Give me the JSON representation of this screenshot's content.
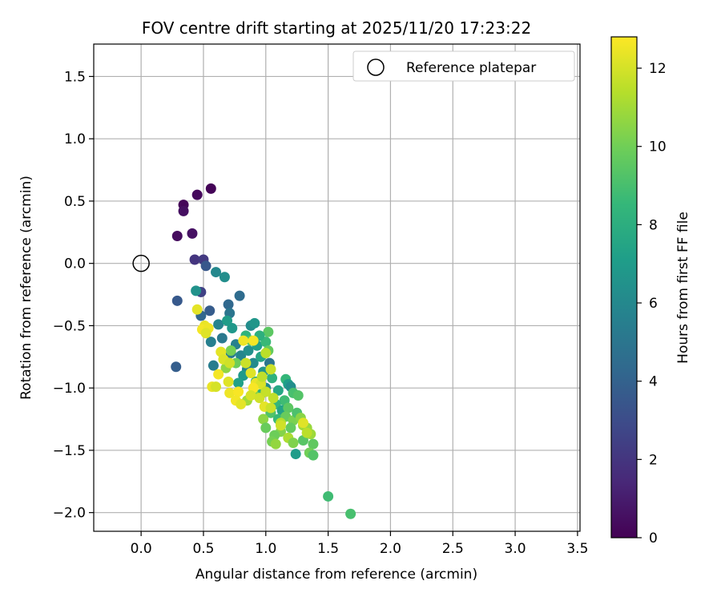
{
  "chart_data": {
    "type": "scatter",
    "title": "FOV centre drift starting at 2025/11/20 17:23:22",
    "xlabel": "Angular distance from reference (arcmin)",
    "ylabel": "Rotation from reference (arcmin)",
    "xlim": [
      -0.38,
      3.52
    ],
    "ylim": [
      -2.15,
      1.76
    ],
    "xticks": [
      0.0,
      0.5,
      1.0,
      1.5,
      2.0,
      2.5,
      3.0,
      3.5
    ],
    "xtick_labels": [
      "0.0",
      "0.5",
      "1.0",
      "1.5",
      "2.0",
      "2.5",
      "3.0",
      "3.5"
    ],
    "yticks": [
      1.5,
      1.0,
      0.5,
      0.0,
      -0.5,
      -1.0,
      -1.5,
      -2.0
    ],
    "ytick_labels": [
      "1.5",
      "1.0",
      "0.5",
      "0.0",
      "−0.5",
      "−1.0",
      "−1.5",
      "−2.0"
    ],
    "grid": true,
    "legend": {
      "position": "top-right",
      "entries": [
        "Reference platepar"
      ]
    },
    "reference": {
      "x": 0.0,
      "y": 0.0,
      "label": "Reference platepar"
    },
    "colorbar": {
      "label": "Hours from first FF file",
      "range": [
        0,
        12.8
      ],
      "ticks": [
        0,
        2,
        4,
        6,
        8,
        10,
        12
      ],
      "tick_labels": [
        "0",
        "2",
        "4",
        "6",
        "8",
        "10",
        "12"
      ],
      "colormap": [
        "#440154",
        "#482878",
        "#3e4989",
        "#31688e",
        "#26828e",
        "#1f9e89",
        "#35b779",
        "#6ece58",
        "#b5de2b",
        "#fde725"
      ]
    },
    "points": [
      [
        0.56,
        0.6,
        0.1
      ],
      [
        0.34,
        0.47,
        0.2
      ],
      [
        0.45,
        0.55,
        0.3
      ],
      [
        0.34,
        0.42,
        0.5
      ],
      [
        0.41,
        0.24,
        0.6
      ],
      [
        0.29,
        0.22,
        0.4
      ],
      [
        0.43,
        0.03,
        2.0
      ],
      [
        0.5,
        0.03,
        2.2
      ],
      [
        0.52,
        -0.02,
        3.5
      ],
      [
        0.29,
        -0.3,
        3.6
      ],
      [
        0.28,
        -0.83,
        3.8
      ],
      [
        0.48,
        -0.23,
        2.5
      ],
      [
        0.55,
        -0.38,
        3.7
      ],
      [
        0.48,
        -0.42,
        4.2
      ],
      [
        0.7,
        -0.33,
        4.3
      ],
      [
        0.79,
        -0.26,
        4.5
      ],
      [
        0.71,
        -0.4,
        5.0
      ],
      [
        0.44,
        -0.22,
        6.5
      ],
      [
        0.6,
        -0.07,
        6.0
      ],
      [
        0.67,
        -0.11,
        6.3
      ],
      [
        0.56,
        -0.63,
        5.5
      ],
      [
        0.65,
        -0.6,
        5.2
      ],
      [
        0.58,
        -0.82,
        5.4
      ],
      [
        0.73,
        -0.52,
        6.8
      ],
      [
        0.62,
        -0.49,
        5.8
      ],
      [
        0.69,
        -0.46,
        7.0
      ],
      [
        0.88,
        -0.5,
        6.2
      ],
      [
        0.91,
        -0.48,
        6.7
      ],
      [
        0.76,
        -0.65,
        5.6
      ],
      [
        0.72,
        -0.72,
        5.3
      ],
      [
        0.8,
        -0.74,
        5.9
      ],
      [
        0.86,
        -0.7,
        6.4
      ],
      [
        0.93,
        -0.66,
        7.2
      ],
      [
        0.9,
        -0.8,
        6.1
      ],
      [
        0.85,
        -0.85,
        5.7
      ],
      [
        0.96,
        -0.75,
        7.5
      ],
      [
        1.03,
        -0.8,
        5.0
      ],
      [
        0.98,
        -0.87,
        6.6
      ],
      [
        0.82,
        -0.9,
        6.9
      ],
      [
        0.78,
        -0.96,
        7.3
      ],
      [
        0.92,
        -0.95,
        7.8
      ],
      [
        1.05,
        -0.92,
        8.2
      ],
      [
        1.0,
        -1.0,
        6.0
      ],
      [
        0.96,
        -1.05,
        8.0
      ],
      [
        1.1,
        -1.02,
        7.6
      ],
      [
        1.16,
        -0.93,
        8.5
      ],
      [
        1.18,
        -0.97,
        7.1
      ],
      [
        1.2,
        -0.99,
        6.3
      ],
      [
        1.15,
        -1.1,
        8.8
      ],
      [
        1.22,
        -1.04,
        9.0
      ],
      [
        1.26,
        -1.06,
        9.3
      ],
      [
        1.08,
        -1.13,
        8.4
      ],
      [
        1.13,
        -1.18,
        7.4
      ],
      [
        1.18,
        -1.16,
        9.5
      ],
      [
        1.04,
        -1.2,
        9.2
      ],
      [
        1.1,
        -1.25,
        8.6
      ],
      [
        1.16,
        -1.23,
        9.8
      ],
      [
        1.22,
        -1.26,
        10.2
      ],
      [
        1.25,
        -1.2,
        9.1
      ],
      [
        1.28,
        -1.24,
        10.5
      ],
      [
        1.3,
        -1.3,
        11.0
      ],
      [
        1.33,
        -1.32,
        10.8
      ],
      [
        1.2,
        -1.32,
        9.7
      ],
      [
        1.12,
        -1.35,
        10.4
      ],
      [
        1.07,
        -1.38,
        9.9
      ],
      [
        1.05,
        -1.43,
        10.1
      ],
      [
        1.08,
        -1.45,
        10.7
      ],
      [
        1.18,
        -1.4,
        11.2
      ],
      [
        1.22,
        -1.44,
        10.3
      ],
      [
        1.3,
        -1.42,
        9.4
      ],
      [
        1.36,
        -1.37,
        10.9
      ],
      [
        1.38,
        -1.45,
        9.6
      ],
      [
        1.35,
        -1.52,
        10.0
      ],
      [
        1.38,
        -1.54,
        9.3
      ],
      [
        1.24,
        -1.53,
        7.0
      ],
      [
        1.5,
        -1.87,
        8.8
      ],
      [
        1.68,
        -2.01,
        9.0
      ],
      [
        1.02,
        -0.55,
        9.5
      ],
      [
        1.0,
        -0.63,
        8.6
      ],
      [
        0.95,
        -0.58,
        8.1
      ],
      [
        0.84,
        -0.58,
        8.3
      ],
      [
        1.02,
        -0.7,
        9.7
      ],
      [
        0.88,
        -0.62,
        9.2
      ],
      [
        0.98,
        -1.25,
        10.6
      ],
      [
        1.0,
        -1.32,
        9.8
      ],
      [
        1.12,
        -1.28,
        11.4
      ],
      [
        0.9,
        -1.05,
        10.3
      ],
      [
        0.72,
        -0.7,
        10.1
      ],
      [
        0.76,
        -0.8,
        9.9
      ],
      [
        0.68,
        -0.84,
        10.6
      ],
      [
        0.85,
        -1.1,
        11.0
      ],
      [
        0.45,
        -0.37,
        12.3
      ],
      [
        0.51,
        -0.5,
        12.4
      ],
      [
        0.49,
        -0.53,
        12.6
      ],
      [
        0.54,
        -0.52,
        12.5
      ],
      [
        0.52,
        -0.56,
        12.2
      ],
      [
        0.64,
        -0.71,
        12.3
      ],
      [
        0.66,
        -0.77,
        12.1
      ],
      [
        0.71,
        -0.8,
        11.9
      ],
      [
        0.62,
        -0.89,
        12.6
      ],
      [
        0.7,
        -0.95,
        12.2
      ],
      [
        0.57,
        -0.99,
        12.4
      ],
      [
        0.6,
        -0.99,
        12.0
      ],
      [
        0.71,
        -1.04,
        12.5
      ],
      [
        0.78,
        -1.03,
        12.7
      ],
      [
        0.76,
        -1.1,
        12.6
      ],
      [
        0.8,
        -1.13,
        12.3
      ],
      [
        0.84,
        -0.8,
        11.8
      ],
      [
        0.82,
        -0.62,
        12.5
      ],
      [
        0.9,
        -0.62,
        12.6
      ],
      [
        0.88,
        -0.88,
        12.2
      ],
      [
        0.92,
        -0.96,
        12.4
      ],
      [
        0.96,
        -0.97,
        12.1
      ],
      [
        0.9,
        -1.0,
        12.7
      ],
      [
        0.88,
        -1.06,
        12.0
      ],
      [
        0.95,
        -1.08,
        11.9
      ],
      [
        1.0,
        -1.03,
        11.7
      ],
      [
        1.06,
        -1.08,
        11.6
      ],
      [
        0.99,
        -1.15,
        12.3
      ],
      [
        1.04,
        -1.16,
        11.8
      ],
      [
        1.12,
        -1.3,
        11.9
      ],
      [
        1.3,
        -1.28,
        12.2
      ],
      [
        1.33,
        -1.36,
        11.5
      ],
      [
        1.0,
        -0.72,
        11.5
      ],
      [
        1.04,
        -0.85,
        11.8
      ],
      [
        0.97,
        -0.91,
        11.6
      ]
    ]
  }
}
